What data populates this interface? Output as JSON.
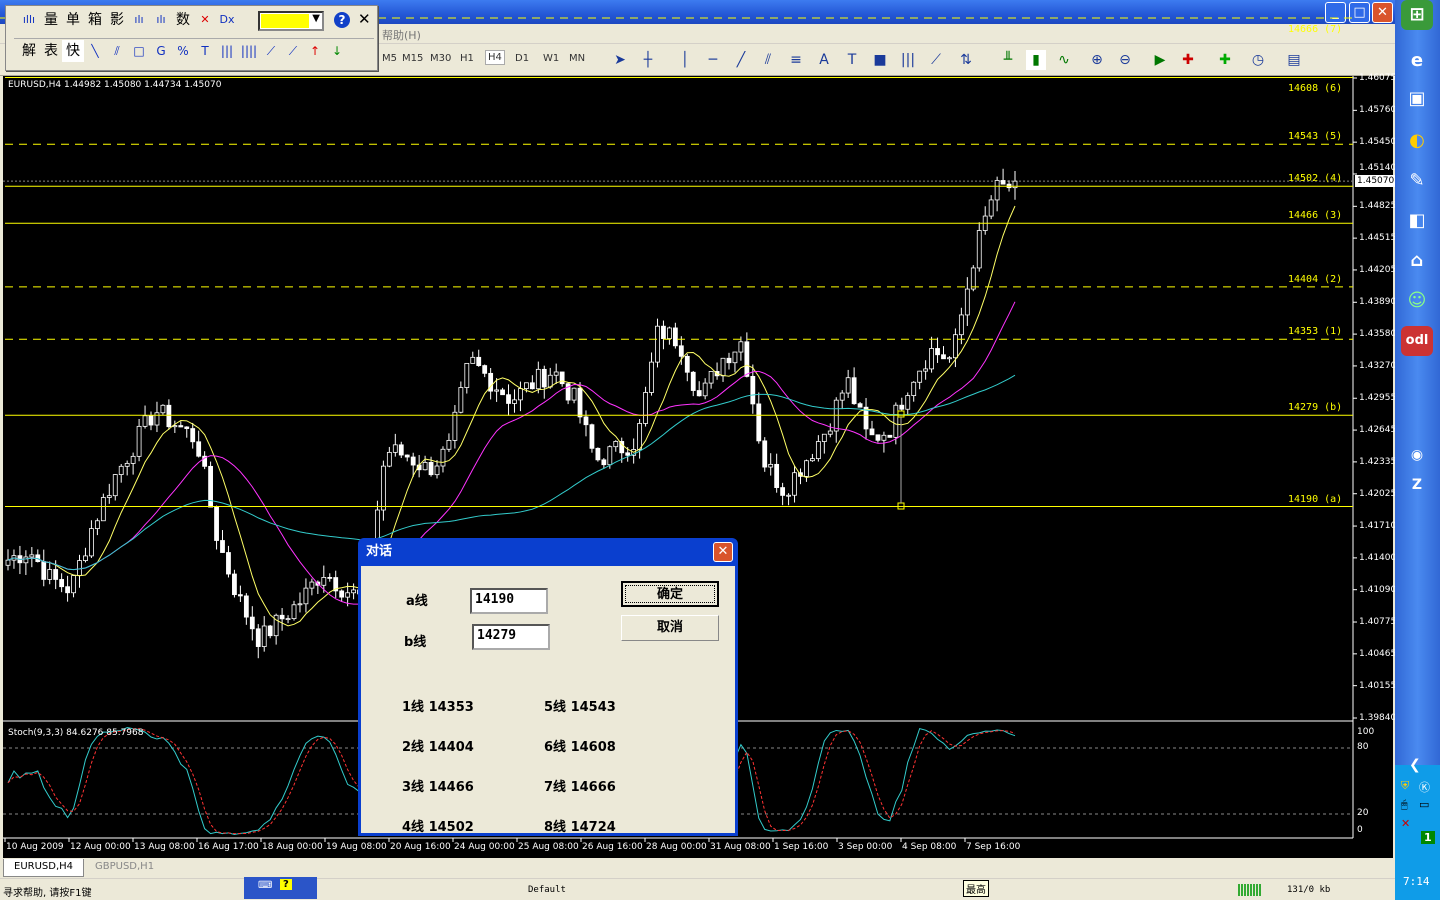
{
  "window": {
    "menu_visible": "帮助(H)",
    "minimize": "_",
    "maximize": "□",
    "close": "✕"
  },
  "float_toolbar": {
    "row1": [
      {
        "icon": "candles-icon",
        "label": "ıllı"
      },
      {
        "label": "量"
      },
      {
        "label": "单"
      },
      {
        "label": "箱"
      },
      {
        "label": "影"
      },
      {
        "icon": "bars-icon-1",
        "label": "ılı"
      },
      {
        "icon": "bars-icon-2",
        "label": "ılı"
      },
      {
        "label": "数"
      },
      {
        "icon": "cross-icon",
        "label": "✕"
      },
      {
        "icon": "dx-icon",
        "label": "Dx"
      }
    ],
    "color_value": "#ffff00",
    "help": "?",
    "close": "✕",
    "row2": [
      {
        "label": "解"
      },
      {
        "label": "表"
      },
      {
        "label": "快"
      },
      {
        "icon": "line-icon",
        "label": "╲"
      },
      {
        "icon": "channel-icon",
        "label": "⫽"
      },
      {
        "icon": "rect-icon",
        "label": "□"
      },
      {
        "icon": "g-lines-icon",
        "label": "G"
      },
      {
        "icon": "percent-lines-icon",
        "label": "%"
      },
      {
        "icon": "t-lines-icon",
        "label": "T"
      },
      {
        "icon": "vlines-icon",
        "label": "|||"
      },
      {
        "icon": "vlines2-icon",
        "label": "||||"
      },
      {
        "icon": "fan-icon",
        "label": "⟋"
      },
      {
        "icon": "fan2-icon",
        "label": "⟋"
      },
      {
        "icon": "arrow-up-icon",
        "label": "↑"
      },
      {
        "icon": "arrow-down-icon",
        "label": "↓"
      }
    ]
  },
  "toolbar": {
    "timeframes": [
      "M5",
      "M15",
      "M30",
      "H1",
      "H4",
      "D1",
      "W1",
      "MN"
    ],
    "selected": "H4"
  },
  "chart": {
    "info": "EURUSD,H4  1.44982 1.45080 1.44734 1.45070",
    "current_price": "1.45070",
    "price_ticks": [
      "1.46075",
      "1.45760",
      "1.45450",
      "1.45140",
      "1.44825",
      "1.44515",
      "1.44205",
      "1.43890",
      "1.43580",
      "1.43270",
      "1.42955",
      "1.42645",
      "1.42335",
      "1.42025",
      "1.41710",
      "1.41400",
      "1.41090",
      "1.40775",
      "1.40465",
      "1.40155",
      "1.39840"
    ],
    "price_range": [
      1.3984,
      1.46075
    ],
    "levels": [
      {
        "label": "14190 (a)",
        "price": 1.419,
        "style": "solid"
      },
      {
        "label": "14279 (b)",
        "price": 1.4279,
        "style": "solid"
      },
      {
        "label": "14353 (1)",
        "price": 1.4353,
        "style": "dashed"
      },
      {
        "label": "14404 (2)",
        "price": 1.4404,
        "style": "dashed"
      },
      {
        "label": "14466 (3)",
        "price": 1.4466,
        "style": "solid"
      },
      {
        "label": "14502 (4)",
        "price": 1.4502,
        "style": "solid"
      },
      {
        "label": "14543 (5)",
        "price": 1.4543,
        "style": "dashed"
      },
      {
        "label": "14608 (6)",
        "price": 1.4608,
        "style": "solid"
      },
      {
        "label": "14666 (7)",
        "price": 1.4666,
        "style": "dashed"
      }
    ],
    "level_color": "#ffff00",
    "close_path": [
      1.4138,
      1.4148,
      1.412,
      1.4109,
      1.417,
      1.4216,
      1.425,
      1.4284,
      1.427,
      1.4255,
      1.4157,
      1.41,
      1.406,
      1.408,
      1.4099,
      1.4128,
      1.411,
      1.4099,
      1.4245,
      1.424,
      1.4226,
      1.4245,
      1.4333,
      1.4313,
      1.4294,
      1.431,
      1.4323,
      1.4294,
      1.4235,
      1.4245,
      1.4255,
      1.4362,
      1.4352,
      1.4294,
      1.4333,
      1.4352,
      1.4235,
      1.4206,
      1.4235,
      1.4265,
      1.4313,
      1.4255,
      1.4265,
      1.4313,
      1.4342,
      1.4333,
      1.443,
      1.4498,
      1.4503
    ],
    "stoch": {
      "label": "Stoch(9,3,3) 84.6276 85.7968",
      "ticks": [
        "100",
        "80",
        "20",
        "0"
      ]
    },
    "time_ticks": [
      "10 Aug 2009",
      "12 Aug 00:00",
      "13 Aug 08:00",
      "16 Aug 17:00",
      "18 Aug 00:00",
      "19 Aug 08:00",
      "20 Aug 16:00",
      "24 Aug 00:00",
      "25 Aug 08:00",
      "26 Aug 16:00",
      "28 Aug 00:00",
      "31 Aug 08:00",
      "1 Sep 16:00",
      "3 Sep 00:00",
      "4 Sep 08:00",
      "7 Sep 16:00"
    ],
    "colors": {
      "ma_fast": "#ffff66",
      "ma_mid": "#ff33ff",
      "ma_slow": "#33cccc",
      "stoch_main": "#33cccc",
      "stoch_signal": "#ff3333"
    }
  },
  "dialog": {
    "title": "对话",
    "a_label": "a线",
    "a_value": "14190",
    "b_label": "b线",
    "b_value": "14279",
    "ok": "确定",
    "cancel": "取消",
    "lines": [
      "1线 14353",
      "2线 14404",
      "3线 14466",
      "4线 14502",
      "5线 14543",
      "6线 14608",
      "7线 14666",
      "8线 14724"
    ]
  },
  "tabs": [
    "EURUSD,H4",
    "GBPUSD,H1"
  ],
  "status": {
    "help": "寻求帮助, 请按F1键",
    "profile": "Default",
    "tooltip": "最高",
    "traffic": "131/0 kb"
  },
  "taskbar": {
    "clock": "7:14"
  }
}
